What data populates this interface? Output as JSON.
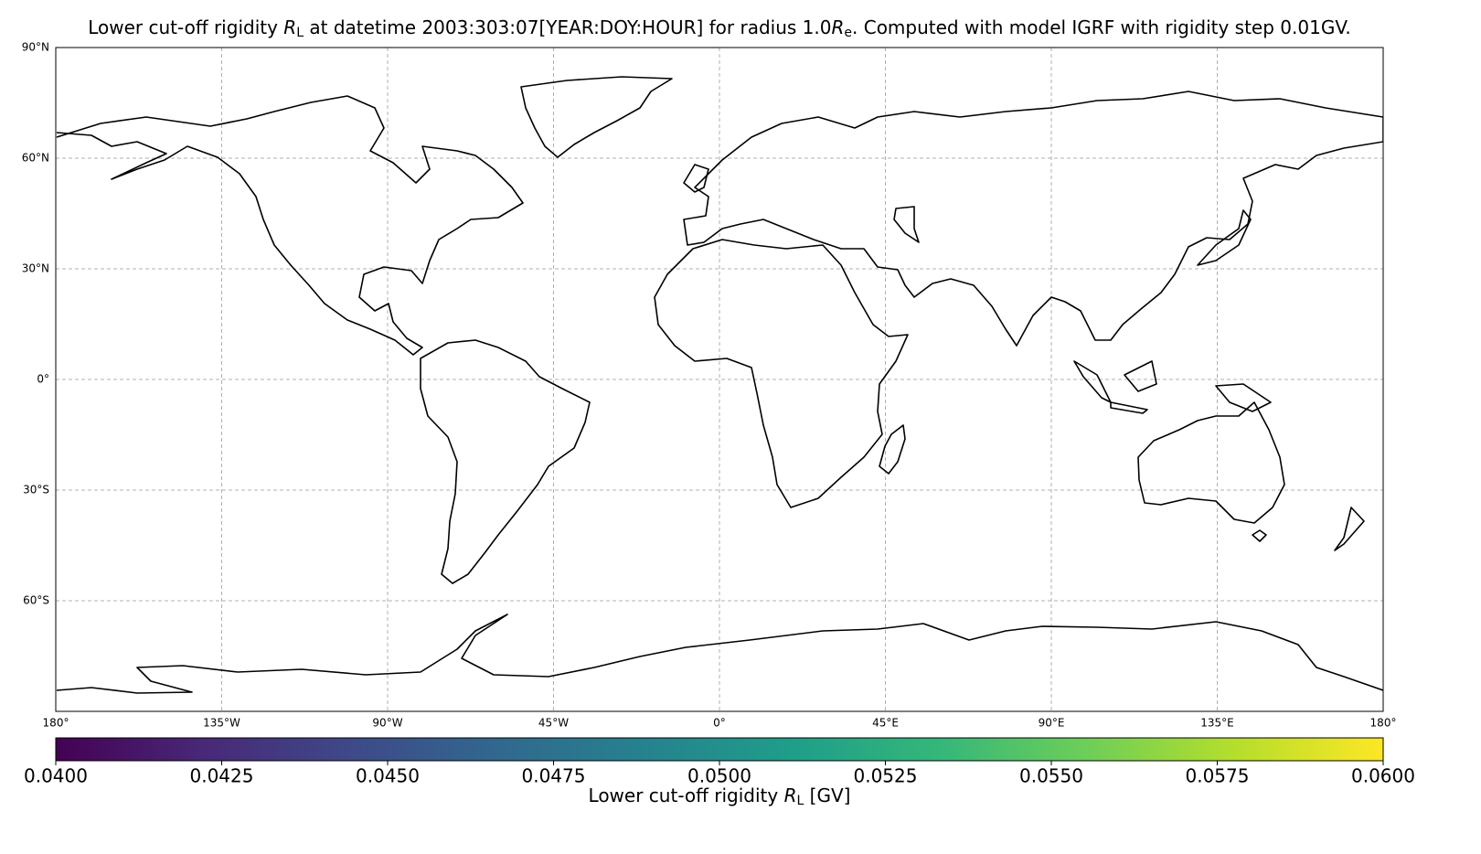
{
  "chart_data": {
    "type": "map",
    "title": [
      "Lower cut-off rigidity ",
      "R",
      "L",
      " at datetime 2003:303:07[YEAR:DOY:HOUR] for radius 1.0",
      "R",
      "e",
      ". Computed with model IGRF with rigidity step 0.01GV."
    ],
    "xlim": [
      -180,
      180
    ],
    "ylim": [
      -90,
      90
    ],
    "xticks": [
      {
        "value": -180,
        "label": "180°"
      },
      {
        "value": -135,
        "label": "135°W"
      },
      {
        "value": -90,
        "label": "90°W"
      },
      {
        "value": -45,
        "label": "45°W"
      },
      {
        "value": 0,
        "label": "0°"
      },
      {
        "value": 45,
        "label": "45°E"
      },
      {
        "value": 90,
        "label": "90°E"
      },
      {
        "value": 135,
        "label": "135°E"
      },
      {
        "value": 180,
        "label": "180°"
      }
    ],
    "yticks": [
      {
        "value": 90,
        "label": "90°N"
      },
      {
        "value": 60,
        "label": "60°N"
      },
      {
        "value": 30,
        "label": "30°N"
      },
      {
        "value": 0,
        "label": "0°"
      },
      {
        "value": -30,
        "label": "30°S"
      },
      {
        "value": -60,
        "label": "60°S"
      }
    ],
    "grid": true,
    "colorbar": {
      "label": [
        "Lower cut-off rigidity ",
        "R",
        "L",
        " [GV]"
      ],
      "colormap": "viridis",
      "lim": [
        0.04,
        0.06
      ],
      "ticks": [
        {
          "value": 0.04,
          "label": "0.0400"
        },
        {
          "value": 0.0425,
          "label": "0.0425"
        },
        {
          "value": 0.045,
          "label": "0.0450"
        },
        {
          "value": 0.0475,
          "label": "0.0475"
        },
        {
          "value": 0.05,
          "label": "0.0500"
        },
        {
          "value": 0.0525,
          "label": "0.0525"
        },
        {
          "value": 0.055,
          "label": "0.0550"
        },
        {
          "value": 0.0575,
          "label": "0.0575"
        },
        {
          "value": 0.06,
          "label": "0.0600"
        }
      ]
    }
  }
}
